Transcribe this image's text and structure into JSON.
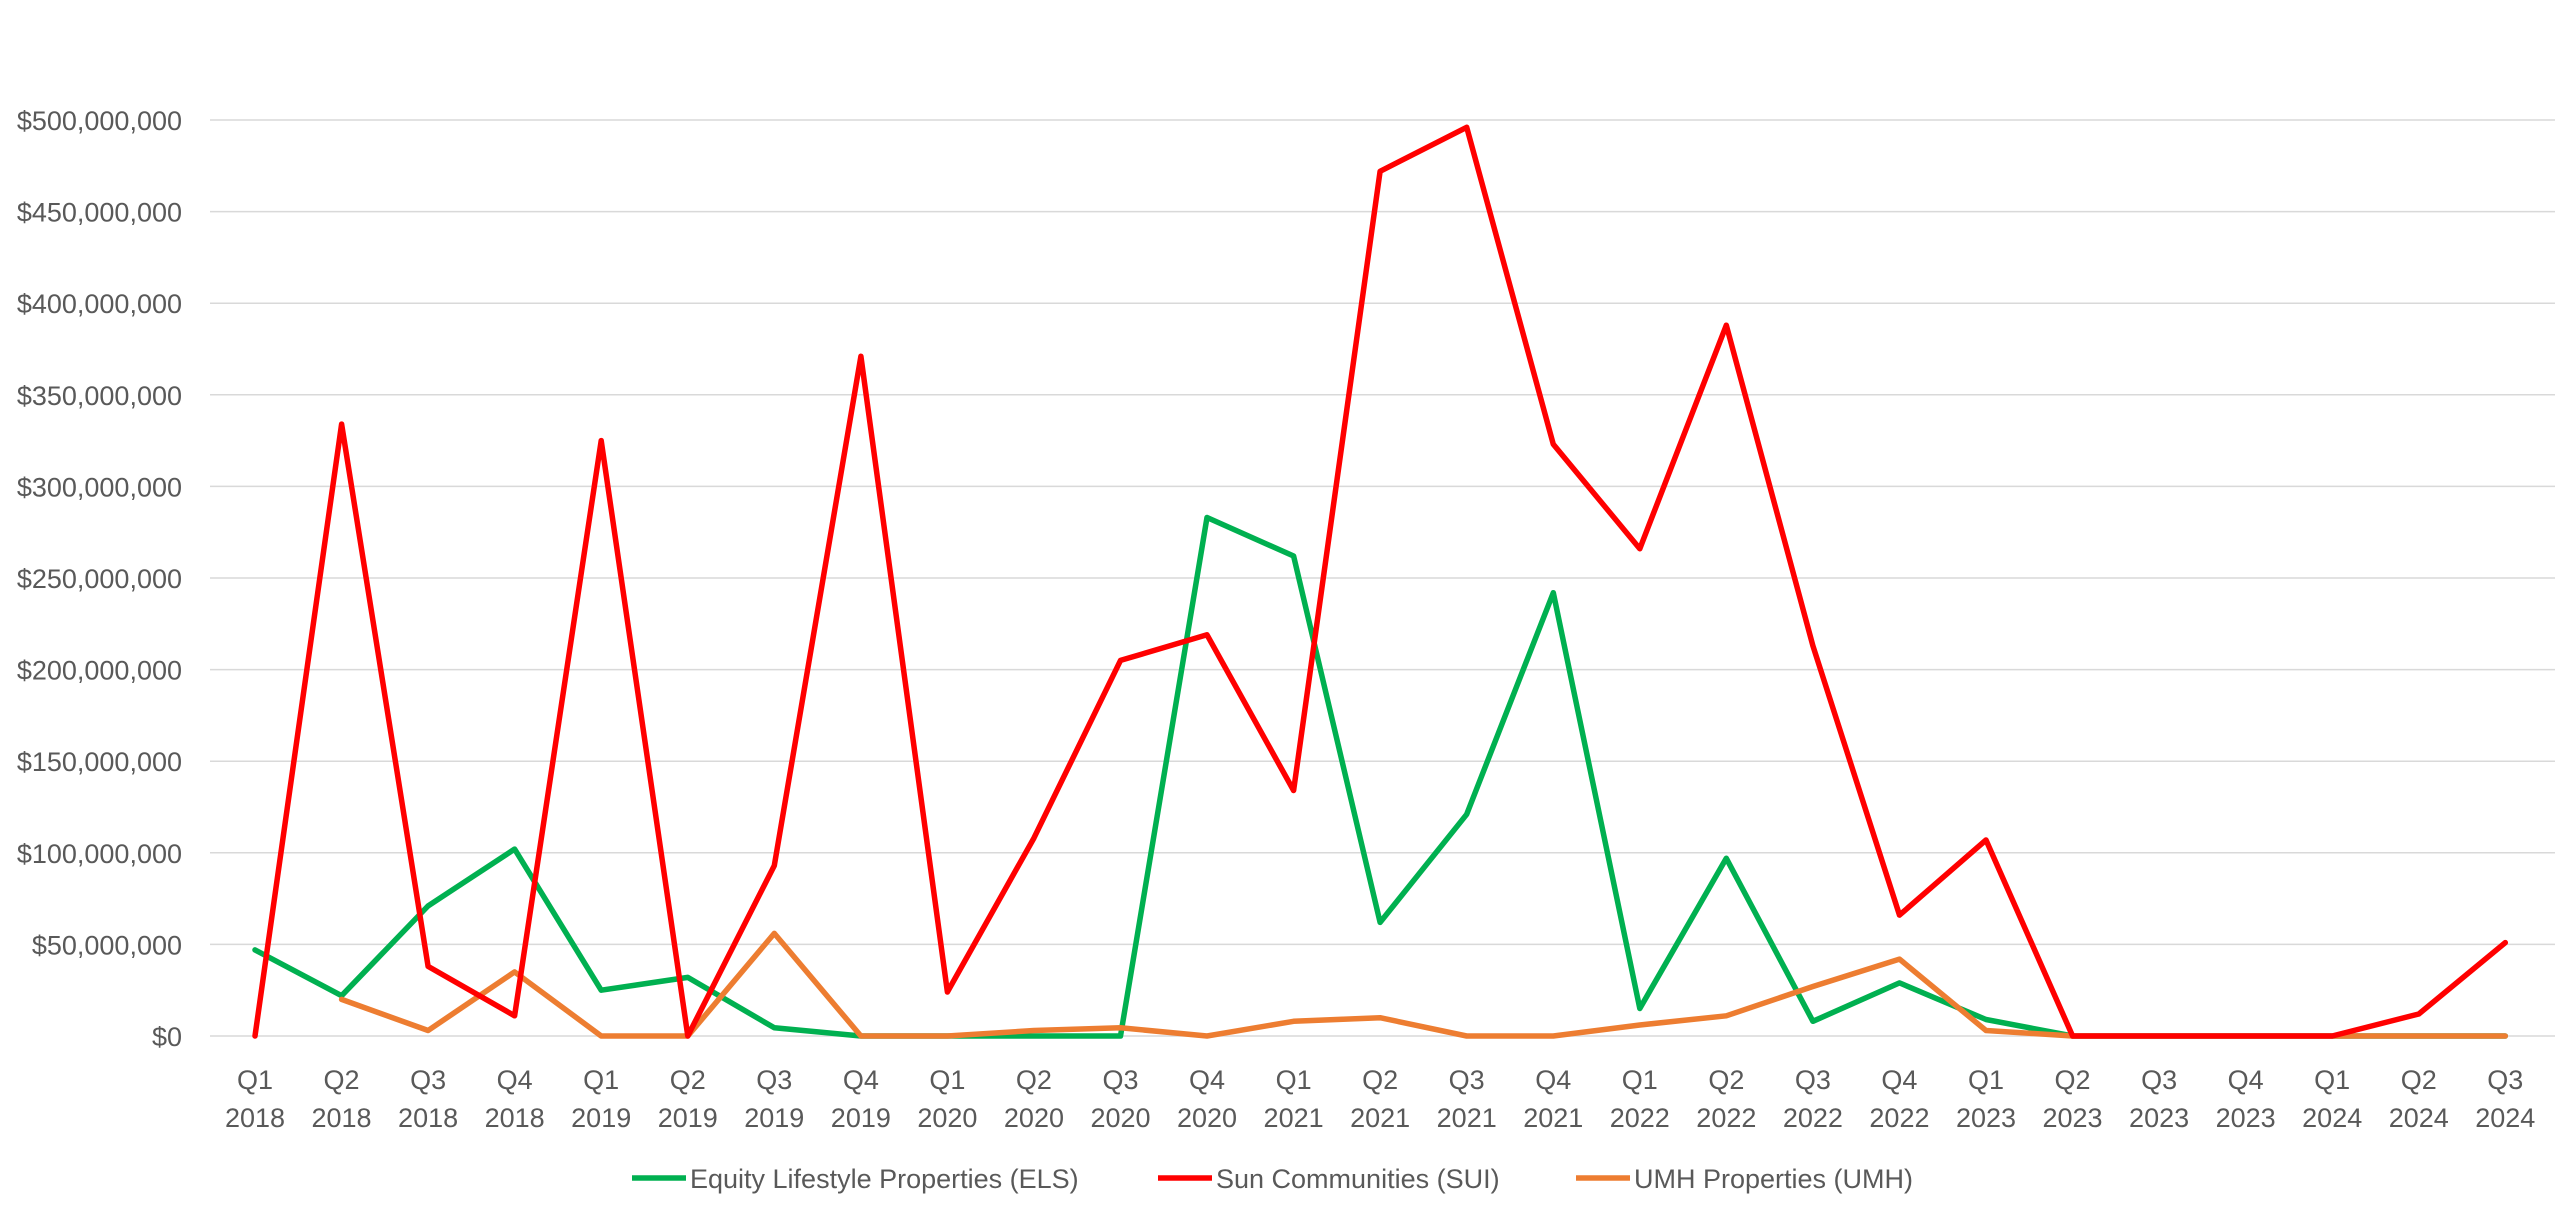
{
  "chart_data": {
    "type": "line",
    "title": "",
    "xlabel": "",
    "ylabel": "",
    "ylim": [
      0,
      500000000
    ],
    "yticks": [
      {
        "value": 0,
        "label": "$0"
      },
      {
        "value": 50000000,
        "label": "$50,000,000"
      },
      {
        "value": 100000000,
        "label": "$100,000,000"
      },
      {
        "value": 150000000,
        "label": "$150,000,000"
      },
      {
        "value": 200000000,
        "label": "$200,000,000"
      },
      {
        "value": 250000000,
        "label": "$250,000,000"
      },
      {
        "value": 300000000,
        "label": "$300,000,000"
      },
      {
        "value": 350000000,
        "label": "$350,000,000"
      },
      {
        "value": 400000000,
        "label": "$400,000,000"
      },
      {
        "value": 450000000,
        "label": "$450,000,000"
      },
      {
        "value": 500000000,
        "label": "$500,000,000"
      }
    ],
    "grid": true,
    "legend_position": "bottom",
    "categories": [
      {
        "quarter": "Q1",
        "year": "2018"
      },
      {
        "quarter": "Q2",
        "year": "2018"
      },
      {
        "quarter": "Q3",
        "year": "2018"
      },
      {
        "quarter": "Q4",
        "year": "2018"
      },
      {
        "quarter": "Q1",
        "year": "2019"
      },
      {
        "quarter": "Q2",
        "year": "2019"
      },
      {
        "quarter": "Q3",
        "year": "2019"
      },
      {
        "quarter": "Q4",
        "year": "2019"
      },
      {
        "quarter": "Q1",
        "year": "2020"
      },
      {
        "quarter": "Q2",
        "year": "2020"
      },
      {
        "quarter": "Q3",
        "year": "2020"
      },
      {
        "quarter": "Q4",
        "year": "2020"
      },
      {
        "quarter": "Q1",
        "year": "2021"
      },
      {
        "quarter": "Q2",
        "year": "2021"
      },
      {
        "quarter": "Q3",
        "year": "2021"
      },
      {
        "quarter": "Q4",
        "year": "2021"
      },
      {
        "quarter": "Q1",
        "year": "2022"
      },
      {
        "quarter": "Q2",
        "year": "2022"
      },
      {
        "quarter": "Q3",
        "year": "2022"
      },
      {
        "quarter": "Q4",
        "year": "2022"
      },
      {
        "quarter": "Q1",
        "year": "2023"
      },
      {
        "quarter": "Q2",
        "year": "2023"
      },
      {
        "quarter": "Q3",
        "year": "2023"
      },
      {
        "quarter": "Q4",
        "year": "2023"
      },
      {
        "quarter": "Q1",
        "year": "2024"
      },
      {
        "quarter": "Q2",
        "year": "2024"
      },
      {
        "quarter": "Q3",
        "year": "2024"
      }
    ],
    "series": [
      {
        "name": "Equity Lifestyle Properties (ELS)",
        "color": "#00b050",
        "values": [
          47000000,
          22000000,
          71000000,
          102000000,
          25000000,
          32000000,
          4500000,
          0,
          0,
          0,
          0,
          283000000,
          262000000,
          62000000,
          121000000,
          242000000,
          15000000,
          97000000,
          8000000,
          29000000,
          9000000,
          0,
          0,
          0,
          0,
          0,
          0
        ]
      },
      {
        "name": "Sun Communities (SUI)",
        "color": "#ff0000",
        "values": [
          0,
          334000000,
          38000000,
          11000000,
          325000000,
          0,
          93000000,
          371000000,
          24000000,
          108000000,
          205000000,
          219000000,
          134000000,
          472000000,
          496000000,
          323000000,
          266000000,
          388000000,
          213000000,
          66000000,
          107000000,
          0,
          0,
          0,
          0,
          12000000,
          51000000
        ]
      },
      {
        "name": "UMH Properties (UMH)",
        "color": "#ed7d31",
        "values": [
          null,
          20000000,
          3000000,
          35000000,
          0,
          0,
          56000000,
          0,
          0,
          3000000,
          4500000,
          0,
          8000000,
          10000000,
          0,
          0,
          6000000,
          11000000,
          27000000,
          42000000,
          3000000,
          0,
          0,
          0,
          0,
          0,
          0
        ]
      }
    ]
  }
}
